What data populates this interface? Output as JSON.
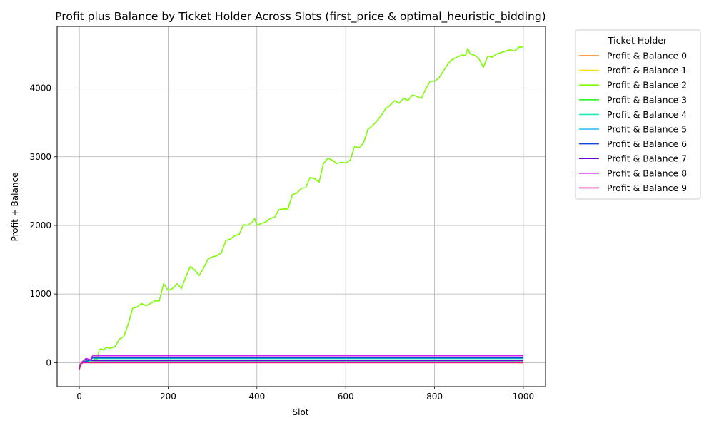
{
  "chart_data": {
    "type": "line",
    "title": "Profit plus Balance by Ticket Holder Across Slots (first_price & optimal_heuristic_bidding)",
    "xlabel": "Slot",
    "ylabel": "Profit + Balance",
    "xlim": [
      -50,
      1050
    ],
    "ylim": [
      -350,
      4900
    ],
    "xticks": [
      0,
      200,
      400,
      600,
      800,
      1000
    ],
    "yticks": [
      0,
      1000,
      2000,
      3000,
      4000
    ],
    "grid": true,
    "legend": {
      "title": "Ticket Holder",
      "placement": "outside-right"
    },
    "series": [
      {
        "name": "Profit & Balance 0",
        "color": "#ff7f0e",
        "points": [
          [
            0,
            -90
          ],
          [
            2,
            -20
          ],
          [
            5,
            0
          ],
          [
            30,
            0
          ],
          [
            1000,
            0
          ]
        ]
      },
      {
        "name": "Profit & Balance 1",
        "color": "#f5e010",
        "points": [
          [
            0,
            -60
          ],
          [
            5,
            -10
          ],
          [
            10,
            0
          ],
          [
            1000,
            0
          ]
        ]
      },
      {
        "name": "Profit & Balance 2",
        "color": "#7cfc00",
        "points": [
          [
            0,
            -50
          ],
          [
            5,
            10
          ],
          [
            10,
            30
          ],
          [
            20,
            30
          ],
          [
            30,
            40
          ],
          [
            40,
            50
          ],
          [
            45,
            190
          ],
          [
            50,
            200
          ],
          [
            55,
            180
          ],
          [
            60,
            220
          ],
          [
            70,
            210
          ],
          [
            80,
            230
          ],
          [
            90,
            340
          ],
          [
            100,
            380
          ],
          [
            110,
            560
          ],
          [
            120,
            790
          ],
          [
            130,
            810
          ],
          [
            140,
            860
          ],
          [
            150,
            830
          ],
          [
            160,
            860
          ],
          [
            170,
            900
          ],
          [
            180,
            900
          ],
          [
            190,
            1150
          ],
          [
            200,
            1050
          ],
          [
            210,
            1080
          ],
          [
            220,
            1150
          ],
          [
            230,
            1080
          ],
          [
            240,
            1250
          ],
          [
            250,
            1400
          ],
          [
            260,
            1350
          ],
          [
            270,
            1270
          ],
          [
            280,
            1380
          ],
          [
            290,
            1510
          ],
          [
            300,
            1540
          ],
          [
            310,
            1560
          ],
          [
            320,
            1600
          ],
          [
            330,
            1780
          ],
          [
            340,
            1800
          ],
          [
            350,
            1850
          ],
          [
            360,
            1870
          ],
          [
            370,
            2010
          ],
          [
            380,
            2000
          ],
          [
            390,
            2050
          ],
          [
            395,
            2100
          ],
          [
            400,
            2000
          ],
          [
            410,
            2030
          ],
          [
            420,
            2050
          ],
          [
            430,
            2100
          ],
          [
            440,
            2120
          ],
          [
            450,
            2230
          ],
          [
            460,
            2240
          ],
          [
            470,
            2240
          ],
          [
            480,
            2450
          ],
          [
            490,
            2470
          ],
          [
            500,
            2540
          ],
          [
            510,
            2550
          ],
          [
            520,
            2700
          ],
          [
            530,
            2680
          ],
          [
            540,
            2630
          ],
          [
            550,
            2900
          ],
          [
            560,
            2980
          ],
          [
            570,
            2950
          ],
          [
            580,
            2900
          ],
          [
            590,
            2920
          ],
          [
            600,
            2910
          ],
          [
            610,
            2950
          ],
          [
            620,
            3150
          ],
          [
            630,
            3130
          ],
          [
            640,
            3200
          ],
          [
            650,
            3400
          ],
          [
            660,
            3450
          ],
          [
            670,
            3520
          ],
          [
            680,
            3600
          ],
          [
            690,
            3700
          ],
          [
            700,
            3750
          ],
          [
            710,
            3820
          ],
          [
            720,
            3780
          ],
          [
            730,
            3850
          ],
          [
            740,
            3820
          ],
          [
            750,
            3900
          ],
          [
            760,
            3880
          ],
          [
            770,
            3850
          ],
          [
            780,
            3980
          ],
          [
            790,
            4100
          ],
          [
            800,
            4100
          ],
          [
            810,
            4150
          ],
          [
            820,
            4250
          ],
          [
            830,
            4350
          ],
          [
            840,
            4420
          ],
          [
            850,
            4450
          ],
          [
            860,
            4480
          ],
          [
            870,
            4480
          ],
          [
            875,
            4580
          ],
          [
            880,
            4500
          ],
          [
            890,
            4480
          ],
          [
            900,
            4430
          ],
          [
            910,
            4300
          ],
          [
            920,
            4470
          ],
          [
            930,
            4450
          ],
          [
            940,
            4500
          ],
          [
            950,
            4520
          ],
          [
            960,
            4540
          ],
          [
            970,
            4560
          ],
          [
            980,
            4540
          ],
          [
            990,
            4600
          ],
          [
            1000,
            4600
          ]
        ]
      },
      {
        "name": "Profit & Balance 3",
        "color": "#2ef22e",
        "points": [
          [
            0,
            -40
          ],
          [
            5,
            0
          ],
          [
            10,
            10
          ],
          [
            1000,
            10
          ]
        ]
      },
      {
        "name": "Profit & Balance 4",
        "color": "#1de9b6",
        "points": [
          [
            0,
            -50
          ],
          [
            5,
            0
          ],
          [
            15,
            20
          ],
          [
            30,
            30
          ],
          [
            35,
            60
          ],
          [
            1000,
            60
          ]
        ]
      },
      {
        "name": "Profit & Balance 5",
        "color": "#29b6f6",
        "points": [
          [
            0,
            -30
          ],
          [
            10,
            10
          ],
          [
            20,
            30
          ],
          [
            1000,
            30
          ]
        ]
      },
      {
        "name": "Profit & Balance 6",
        "color": "#0d47d8",
        "points": [
          [
            0,
            -60
          ],
          [
            5,
            0
          ],
          [
            15,
            20
          ],
          [
            25,
            40
          ],
          [
            30,
            70
          ],
          [
            1000,
            70
          ]
        ]
      },
      {
        "name": "Profit & Balance 7",
        "color": "#6a00d8",
        "points": [
          [
            0,
            -80
          ],
          [
            5,
            0
          ],
          [
            15,
            60
          ],
          [
            20,
            50
          ],
          [
            30,
            30
          ],
          [
            1000,
            30
          ]
        ]
      },
      {
        "name": "Profit & Balance 8",
        "color": "#cc22ee",
        "points": [
          [
            0,
            -70
          ],
          [
            5,
            0
          ],
          [
            15,
            50
          ],
          [
            25,
            40
          ],
          [
            30,
            100
          ],
          [
            1000,
            100
          ]
        ]
      },
      {
        "name": "Profit & Balance 9",
        "color": "#e0129a",
        "points": [
          [
            0,
            -100
          ],
          [
            3,
            -20
          ],
          [
            8,
            0
          ],
          [
            1000,
            0
          ]
        ]
      }
    ]
  }
}
